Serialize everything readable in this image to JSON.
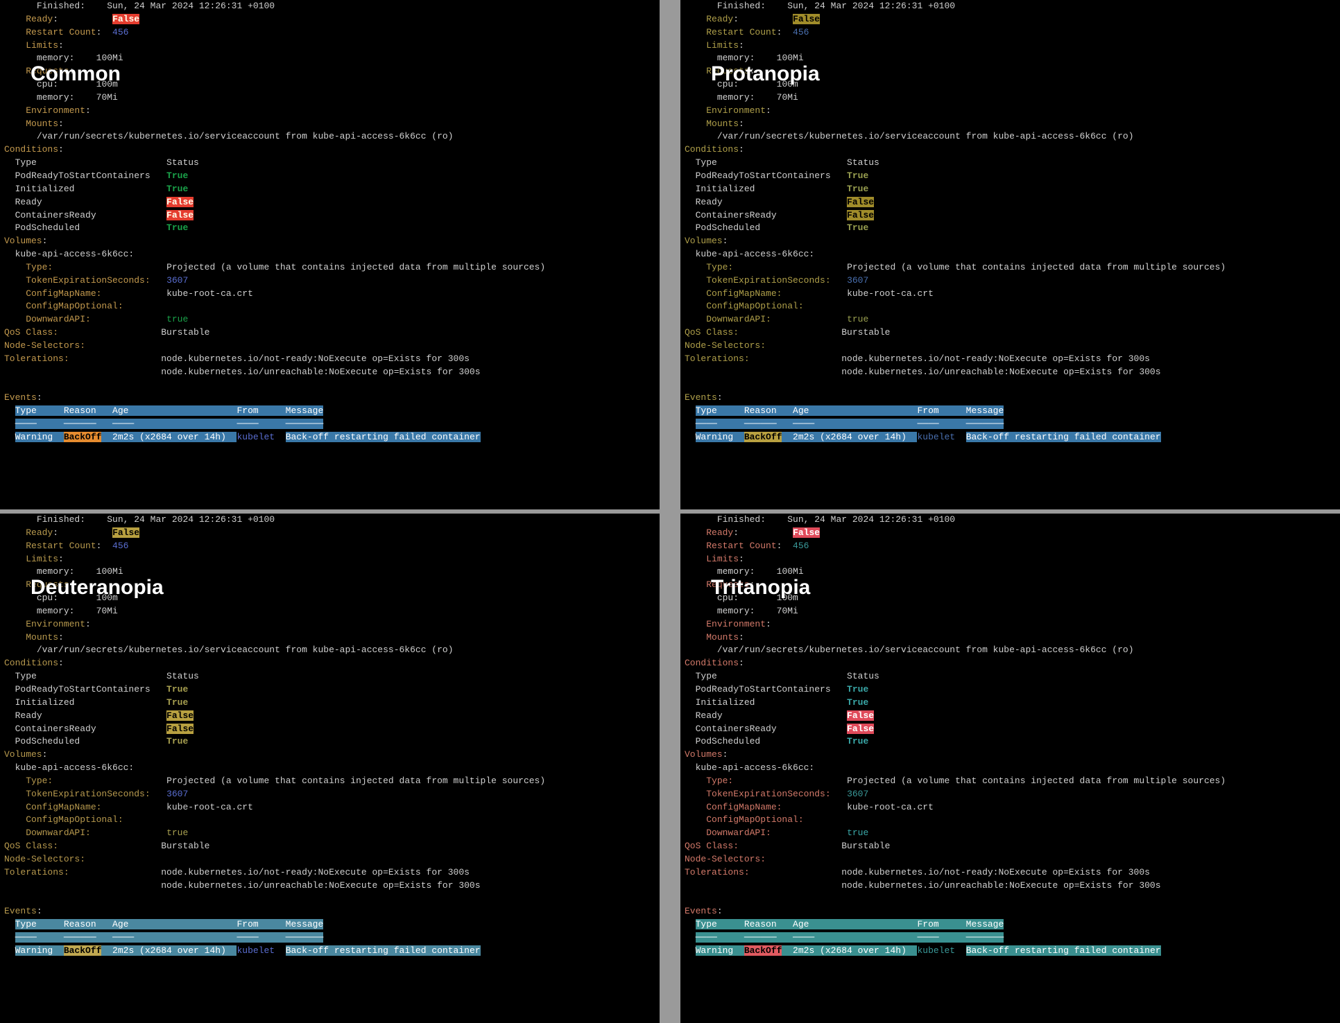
{
  "labels": {
    "common": "Common",
    "protanopia": "Protanopia",
    "deuteranopia": "Deuteranopia",
    "tritanopia": "Tritanopia"
  },
  "container": {
    "finished_label": "Finished",
    "finished_value": "Sun, 24 Mar 2024 12:26:31 +0100",
    "ready_label": "Ready",
    "ready_value": "False",
    "restart_count_label": "Restart Count",
    "restart_count_value": "456",
    "limits_label": "Limits",
    "requests_label": "Requests",
    "cpu_label": "cpu",
    "cpu_value": "100m",
    "mem_label": "memory",
    "mem_limit": "100Mi",
    "mem_request": "70Mi",
    "env_label": "Environment",
    "env_value": "<none>",
    "mounts_label": "Mounts",
    "mount_path": "/var/run/secrets/kubernetes.io/serviceaccount from kube-api-access-6k6cc (ro)"
  },
  "conditions": {
    "header": "Conditions",
    "col_type": "Type",
    "col_status": "Status",
    "rows": [
      {
        "type": "PodReadyToStartContainers",
        "status": "True",
        "ok": true
      },
      {
        "type": "Initialized",
        "status": "True",
        "ok": true
      },
      {
        "type": "Ready",
        "status": "False",
        "ok": false
      },
      {
        "type": "ContainersReady",
        "status": "False",
        "ok": false
      },
      {
        "type": "PodScheduled",
        "status": "True",
        "ok": true
      }
    ]
  },
  "volumes": {
    "header": "Volumes",
    "name": "kube-api-access-6k6cc",
    "type_label": "Type",
    "type_value": "Projected (a volume that contains injected data from multiple sources)",
    "tes_label": "TokenExpirationSeconds",
    "tes_value": "3607",
    "cmn_label": "ConfigMapName",
    "cmn_value": "kube-root-ca.crt",
    "cmo_label": "ConfigMapOptional",
    "cmo_value": "<nil>",
    "dapi_label": "DownwardAPI",
    "dapi_value": "true"
  },
  "meta": {
    "qos_label": "QoS Class",
    "qos_value": "Burstable",
    "nodesel_label": "Node-Selectors",
    "nodesel_value": "<none>",
    "tol_label": "Tolerations",
    "tol_line1": "node.kubernetes.io/not-ready:NoExecute op=Exists for 300s",
    "tol_line2": "node.kubernetes.io/unreachable:NoExecute op=Exists for 300s"
  },
  "events": {
    "header": "Events",
    "cols": {
      "type": "Type",
      "reason": "Reason",
      "age": "Age",
      "from": "From",
      "message": "Message"
    },
    "dashes": {
      "type": "────",
      "reason": "──────",
      "age": "────",
      "from": "────",
      "message": "───────"
    },
    "row": {
      "type": "Warning",
      "reason": "BackOff",
      "age": "2m2s (x2684 over 14h)",
      "from": "kubelet",
      "message": "Back-off restarting failed container"
    }
  }
}
